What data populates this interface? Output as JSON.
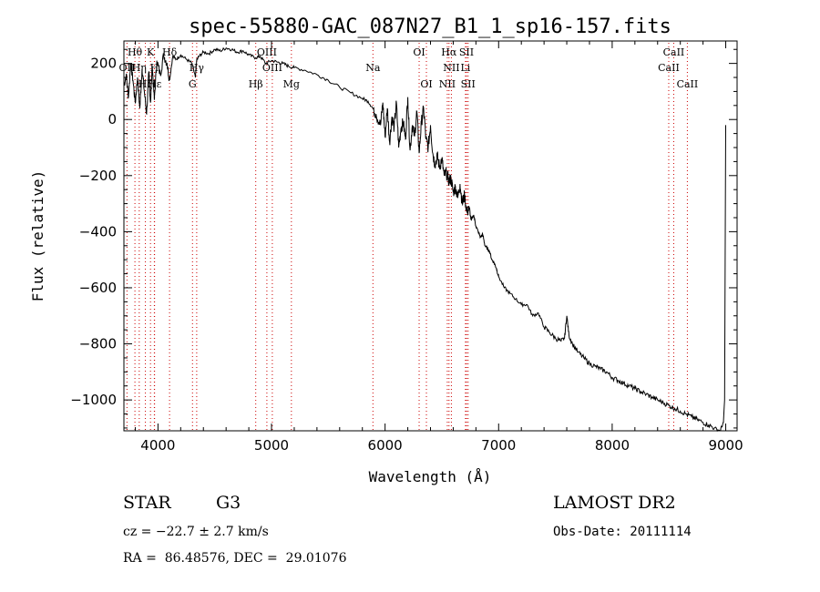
{
  "chart_data": {
    "type": "line",
    "title": "spec-55880-GAC_087N27_B1_1_sp16-157.fits",
    "xlabel": "Wavelength (Å)",
    "ylabel": "Flux (relative)",
    "xlim": [
      3700,
      9100
    ],
    "ylim": [
      -1110,
      280
    ],
    "x_ticks": [
      4000,
      5000,
      6000,
      7000,
      8000,
      9000
    ],
    "x_tick_labels": [
      "4000",
      "5000",
      "6000",
      "7000",
      "8000",
      "9000"
    ],
    "y_ticks": [
      200,
      0,
      -200,
      -400,
      -600,
      -800,
      -1000
    ],
    "y_tick_labels": [
      "200",
      "0",
      "−200",
      "−400",
      "−600",
      "−800",
      "−1000"
    ],
    "grid": false,
    "legend": "none",
    "line_color": "#000000",
    "marker_color": "#cc0000",
    "series": [
      {
        "x": [
          3700,
          3720,
          3740,
          3760,
          3780,
          3800,
          3820,
          3840,
          3860,
          3880,
          3900,
          3920,
          3934,
          3950,
          3968,
          3990,
          4020,
          4050,
          4080,
          4102,
          4130,
          4160,
          4200,
          4250,
          4300,
          4330,
          4340,
          4360,
          4400,
          4450,
          4500,
          4550,
          4600,
          4650,
          4700,
          4750,
          4800,
          4861,
          4900,
          4950,
          5000,
          5050,
          5100,
          5150,
          5200,
          5300,
          5400,
          5500,
          5600,
          5700,
          5800,
          5850,
          5893,
          5920,
          5960,
          5980,
          6000,
          6020,
          6040,
          6060,
          6080,
          6100,
          6120,
          6140,
          6160,
          6180,
          6200,
          6220,
          6240,
          6260,
          6280,
          6300,
          6320,
          6340,
          6360,
          6380,
          6400,
          6420,
          6440,
          6460,
          6480,
          6500,
          6520,
          6540,
          6563,
          6580,
          6600,
          6620,
          6640,
          6660,
          6680,
          6700,
          6720,
          6740,
          6760,
          6780,
          6800,
          6820,
          6840,
          6860,
          6880,
          6900,
          6920,
          6940,
          6960,
          6980,
          7000,
          7050,
          7100,
          7150,
          7200,
          7250,
          7300,
          7350,
          7400,
          7450,
          7500,
          7550,
          7580,
          7600,
          7620,
          7650,
          7700,
          7750,
          7800,
          7850,
          7900,
          7950,
          8000,
          8050,
          8100,
          8150,
          8200,
          8250,
          8300,
          8350,
          8400,
          8450,
          8500,
          8550,
          8600,
          8650,
          8700,
          8750,
          8800,
          8850,
          8900,
          8950,
          8980,
          8990,
          9000
        ],
        "y": [
          120,
          160,
          80,
          200,
          140,
          60,
          150,
          40,
          180,
          100,
          20,
          170,
          60,
          190,
          70,
          210,
          160,
          230,
          200,
          140,
          225,
          215,
          230,
          215,
          200,
          150,
          210,
          225,
          240,
          235,
          250,
          245,
          255,
          250,
          240,
          245,
          230,
          220,
          225,
          200,
          210,
          205,
          200,
          190,
          185,
          175,
          160,
          140,
          115,
          95,
          75,
          65,
          40,
          20,
          -20,
          60,
          -60,
          40,
          -80,
          10,
          -30,
          60,
          -100,
          -30,
          -10,
          -70,
          80,
          -110,
          -20,
          -60,
          30,
          -120,
          -10,
          40,
          -70,
          -100,
          -20,
          -120,
          -160,
          -130,
          -170,
          -140,
          -200,
          -190,
          -220,
          -210,
          -260,
          -240,
          -280,
          -230,
          -300,
          -270,
          -330,
          -320,
          -360,
          -340,
          -380,
          -400,
          -420,
          -410,
          -450,
          -460,
          -470,
          -500,
          -510,
          -530,
          -560,
          -600,
          -620,
          -640,
          -660,
          -660,
          -700,
          -690,
          -740,
          -760,
          -780,
          -790,
          -780,
          -700,
          -770,
          -800,
          -830,
          -850,
          -870,
          -880,
          -890,
          -900,
          -920,
          -930,
          -940,
          -950,
          -960,
          -970,
          -980,
          -990,
          -1000,
          -1010,
          -1020,
          -1030,
          -1040,
          -1050,
          -1060,
          -1070,
          -1080,
          -1090,
          -1100,
          -1110,
          -1080,
          -1000,
          -20
        ]
      }
    ],
    "line_markers": [
      {
        "label": "Hθ",
        "x": 3797,
        "row": 1
      },
      {
        "label": "K",
        "x": 3934,
        "row": 1
      },
      {
        "label": "Hδ",
        "x": 4102,
        "row": 1
      },
      {
        "label": "OII",
        "x": 3727,
        "row": 2
      },
      {
        "label": "Hη",
        "x": 3835,
        "row": 2
      },
      {
        "label": "H",
        "x": 3968,
        "row": 2
      },
      {
        "label": "Hγ",
        "x": 4341,
        "row": 2
      },
      {
        "label": "Hζ",
        "x": 3889,
        "row": 3
      },
      {
        "label": "Hε",
        "x": 3970,
        "row": 3
      },
      {
        "label": "G",
        "x": 4304,
        "row": 3
      },
      {
        "label": "OIII",
        "x": 4959,
        "row": 1
      },
      {
        "label": "OIII",
        "x": 5007,
        "row": 2
      },
      {
        "label": "Hβ",
        "x": 4861,
        "row": 3
      },
      {
        "label": "Mg",
        "x": 5175,
        "row": 3
      },
      {
        "label": "Na",
        "x": 5893,
        "row": 2
      },
      {
        "label": "OI",
        "x": 6300,
        "row": 1
      },
      {
        "label": "OI",
        "x": 6364,
        "row": 3
      },
      {
        "label": "Hα",
        "x": 6563,
        "row": 1
      },
      {
        "label": "SII",
        "x": 6717,
        "row": 1
      },
      {
        "label": "NII",
        "x": 6584,
        "row": 2
      },
      {
        "label": "Li",
        "x": 6708,
        "row": 2
      },
      {
        "label": "NII",
        "x": 6548,
        "row": 3
      },
      {
        "label": "SII",
        "x": 6731,
        "row": 3
      },
      {
        "label": "CaII",
        "x": 8542,
        "row": 1
      },
      {
        "label": "CaII",
        "x": 8498,
        "row": 2
      },
      {
        "label": "CaII",
        "x": 8662,
        "row": 3
      }
    ]
  },
  "info": {
    "object_class": "STAR",
    "subclass": "G3",
    "survey": "LAMOST DR2",
    "cz": "cz = −22.7 ± 2.7 km/s",
    "obs_date": "Obs-Date: 20111114",
    "coords": "RA =  86.48576, DEC =  29.01076"
  }
}
